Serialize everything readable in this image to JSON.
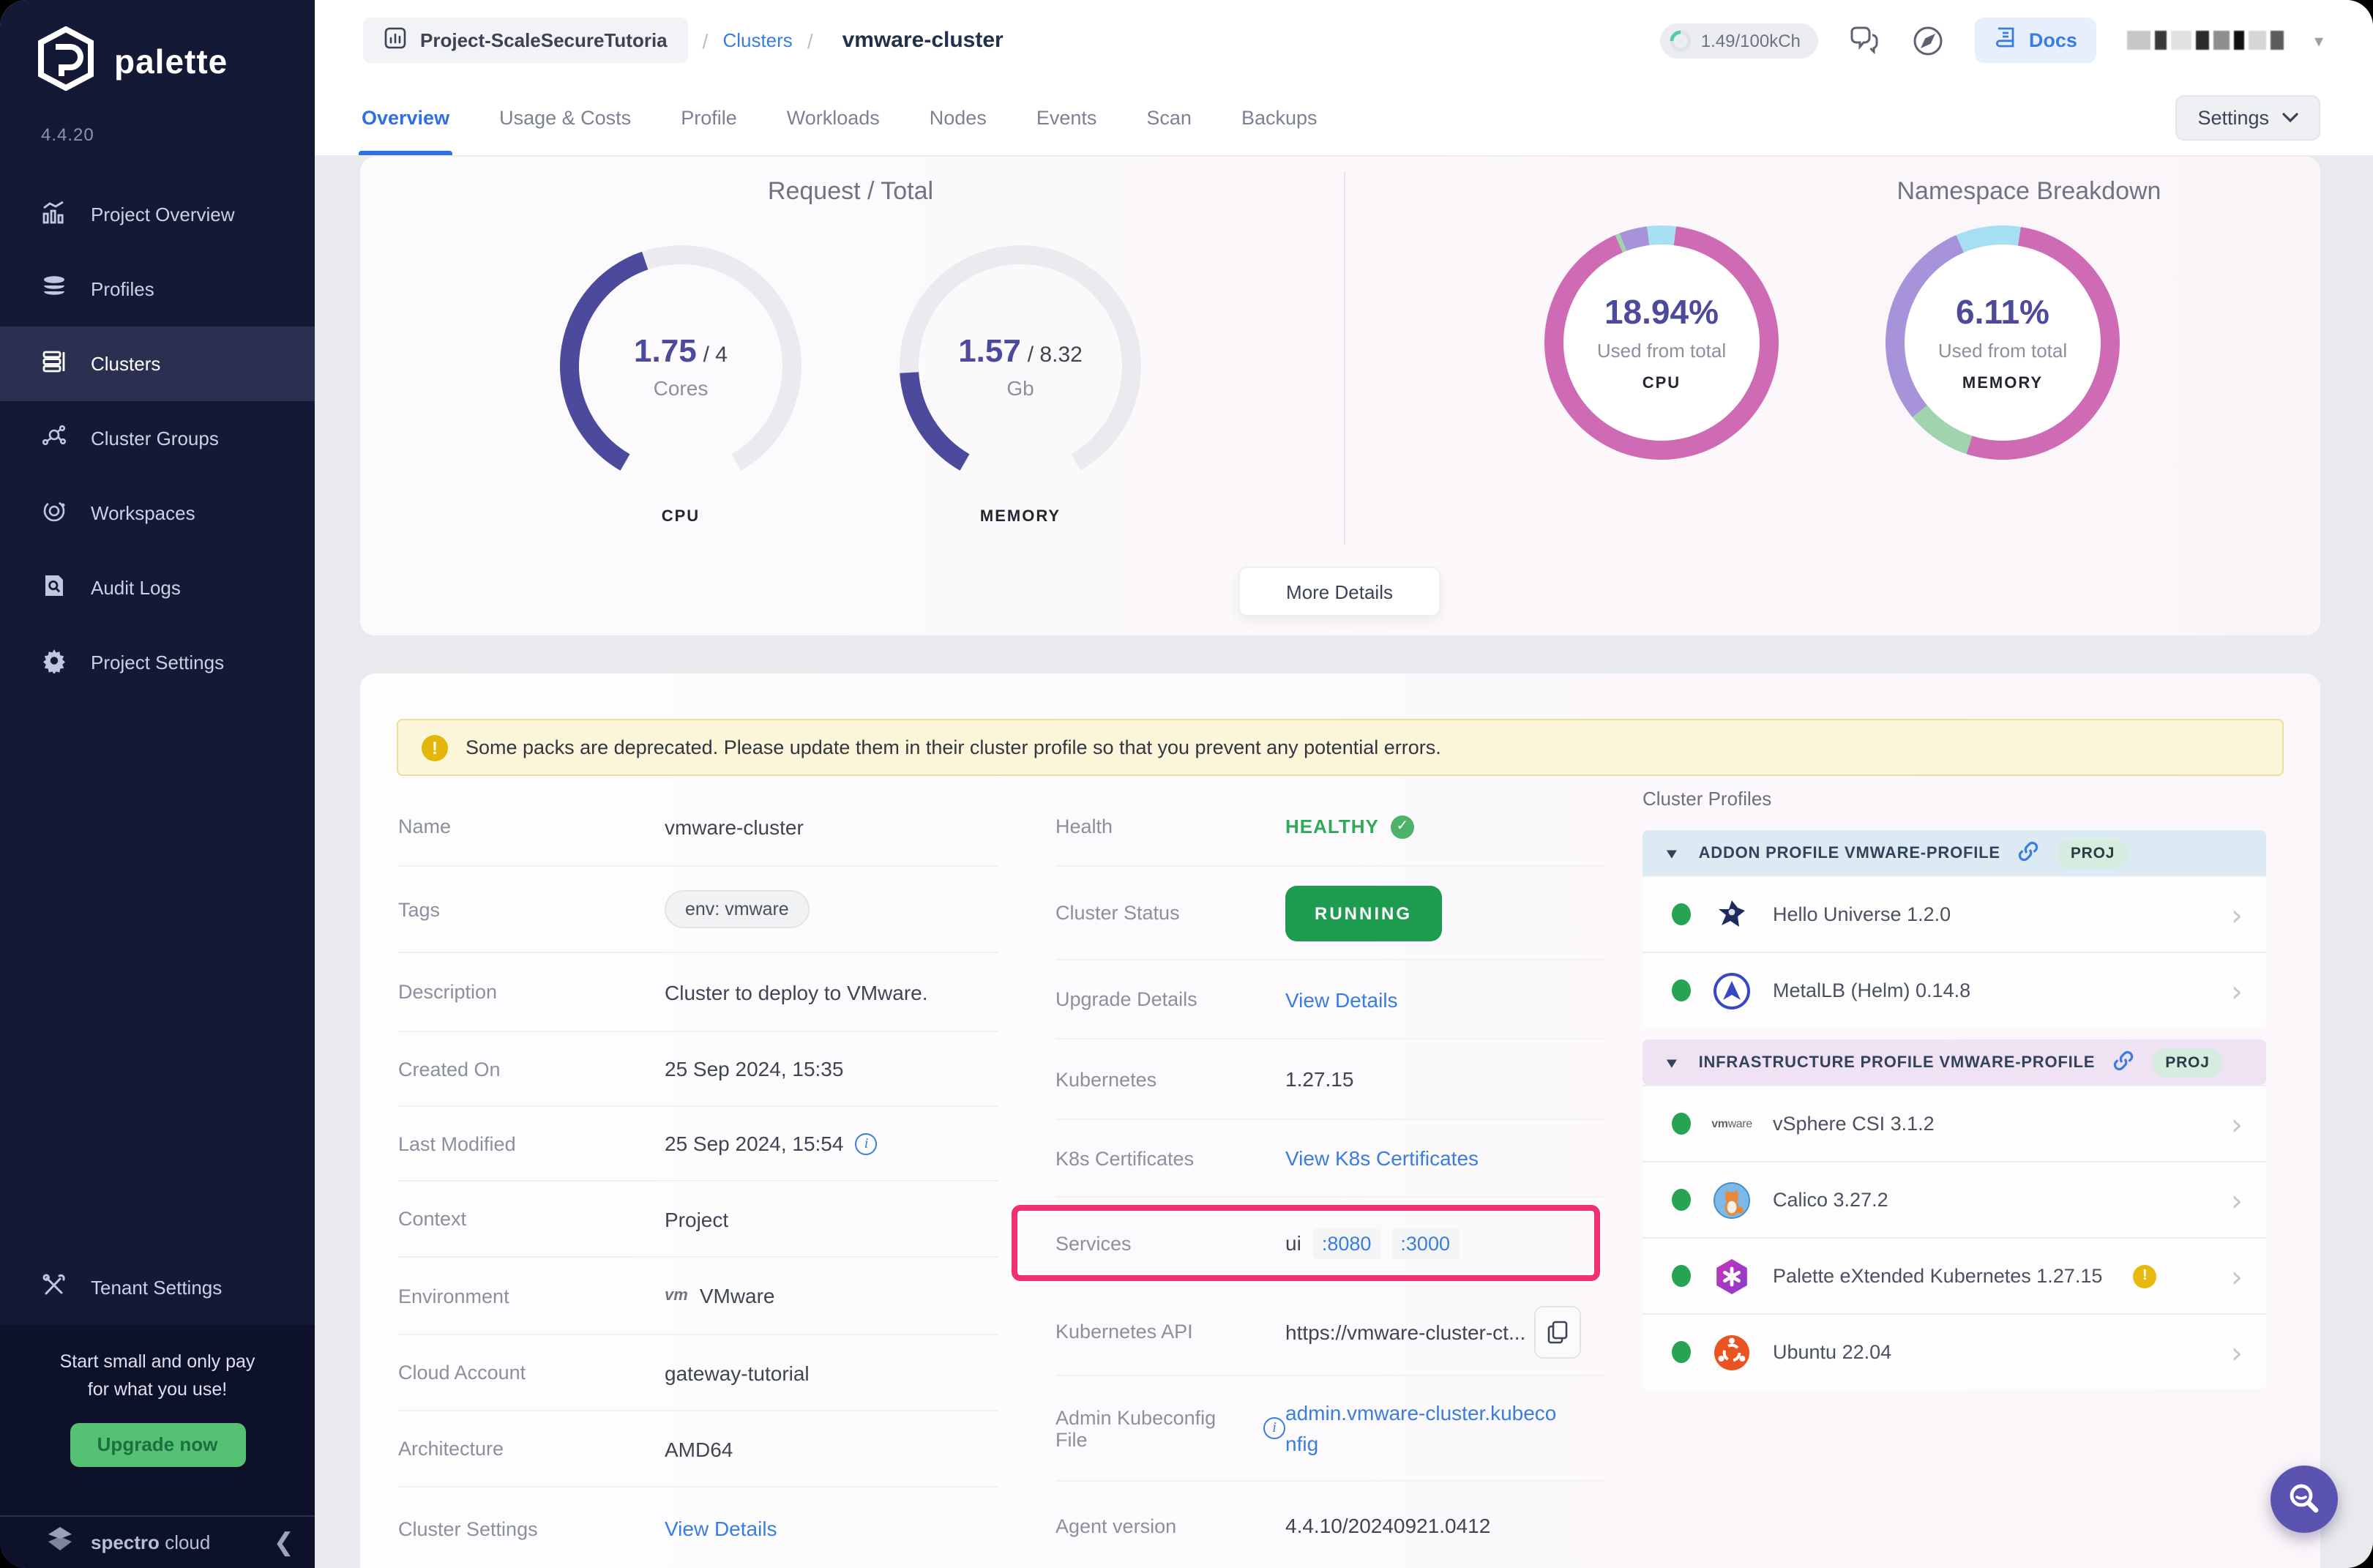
{
  "topbar": {
    "project_badge": "Project-ScaleSecureTutoria",
    "breadcrumb_section": "Clusters",
    "breadcrumb_current": "vmware-cluster",
    "credits": "1.49/100kCh",
    "docs_label": "Docs"
  },
  "sidebar": {
    "brand": "palette",
    "version": "4.4.20",
    "items": [
      {
        "label": "Project Overview"
      },
      {
        "label": "Profiles"
      },
      {
        "label": "Clusters"
      },
      {
        "label": "Cluster Groups"
      },
      {
        "label": "Workspaces"
      },
      {
        "label": "Audit Logs"
      },
      {
        "label": "Project Settings"
      }
    ],
    "tenant_settings": "Tenant Settings",
    "upsell_line1": "Start small and only pay",
    "upsell_line2": "for what you use!",
    "upgrade_label": "Upgrade now",
    "footer_brand_bold": "spectro",
    "footer_brand_light": "cloud"
  },
  "tabs": [
    {
      "label": "Overview"
    },
    {
      "label": "Usage & Costs"
    },
    {
      "label": "Profile"
    },
    {
      "label": "Workloads"
    },
    {
      "label": "Nodes"
    },
    {
      "label": "Events"
    },
    {
      "label": "Scan"
    },
    {
      "label": "Backups"
    }
  ],
  "settings_button": "Settings",
  "overview": {
    "request_total": {
      "title": "Request / Total",
      "cpu": {
        "value": "1.75",
        "total": "/ 4",
        "unit": "Cores",
        "label": "CPU",
        "fraction": 0.4375
      },
      "memory": {
        "value": "1.57",
        "total": "/ 8.32",
        "unit": "Gb",
        "label": "MEMORY",
        "fraction": 0.1887
      }
    },
    "namespace": {
      "title": "Namespace Breakdown",
      "cpu": {
        "percent": "18.94%",
        "caption": "Used from total",
        "label": "CPU",
        "segments": [
          {
            "c": "#a6dff3",
            "p": 2
          },
          {
            "c": "#cf6ab5",
            "p": 91.5
          },
          {
            "c": "#9fd4ae",
            "p": 0.7
          },
          {
            "c": "#a793da",
            "p": 3.8
          },
          {
            "c": "#a6dff3",
            "p": 2
          }
        ]
      },
      "memory": {
        "percent": "6.11%",
        "caption": "Used from total",
        "label": "MEMORY",
        "segments": [
          {
            "c": "#a6dff3",
            "p": 2.5
          },
          {
            "c": "#cf6ab5",
            "p": 52.5
          },
          {
            "c": "#9fd4ae",
            "p": 9
          },
          {
            "c": "#a793da",
            "p": 29.5
          },
          {
            "c": "#a6dff3",
            "p": 6.5
          }
        ]
      }
    },
    "more_details": "More Details"
  },
  "warning": "Some packs are deprecated. Please update them in their cluster profile so that you prevent any potential errors.",
  "details": {
    "left": {
      "name": {
        "label": "Name",
        "value": "vmware-cluster"
      },
      "tags": {
        "label": "Tags",
        "tag": "env: vmware"
      },
      "description": {
        "label": "Description",
        "value": "Cluster to deploy to VMware."
      },
      "created": {
        "label": "Created On",
        "value": "25 Sep 2024, 15:35"
      },
      "modified": {
        "label": "Last Modified",
        "value": "25 Sep 2024, 15:54"
      },
      "context": {
        "label": "Context",
        "value": "Project"
      },
      "environment": {
        "label": "Environment",
        "value": "VMware",
        "icon_text": "vm"
      },
      "cloud_account": {
        "label": "Cloud Account",
        "value": "gateway-tutorial"
      },
      "architecture": {
        "label": "Architecture",
        "value": "AMD64"
      },
      "cluster_settings": {
        "label": "Cluster Settings",
        "link": "View Details"
      }
    },
    "middle": {
      "health": {
        "label": "Health",
        "value": "HEALTHY"
      },
      "status": {
        "label": "Cluster Status",
        "value": "RUNNING"
      },
      "upgrade": {
        "label": "Upgrade Details",
        "link": "View Details"
      },
      "kubernetes": {
        "label": "Kubernetes",
        "value": "1.27.15"
      },
      "certificates": {
        "label": "K8s Certificates",
        "link": "View K8s Certificates"
      },
      "services": {
        "label": "Services",
        "name": "ui",
        "ports": [
          ":8080",
          ":3000"
        ]
      },
      "api": {
        "label": "Kubernetes API",
        "value": "https://vmware-cluster-ct..."
      },
      "kubeconfig": {
        "label": "Admin Kubeconfig File",
        "link": "admin.vmware-cluster.kubeconfig"
      },
      "agent": {
        "label": "Agent version",
        "value": "4.4.10/20240921.0412"
      }
    }
  },
  "profiles": {
    "title": "Cluster Profiles",
    "groups": [
      {
        "name": "ADDON PROFILE VMWARE-PROFILE",
        "badge": "PROJ",
        "items": [
          {
            "name": "Hello Universe 1.2.0"
          },
          {
            "name": "MetalLB (Helm) 0.14.8"
          }
        ]
      },
      {
        "name": "INFRASTRUCTURE PROFILE VMWARE-PROFILE",
        "badge": "PROJ",
        "items": [
          {
            "name": "vSphere CSI 3.1.2"
          },
          {
            "name": "Calico 3.27.2"
          },
          {
            "name": "Palette eXtended Kubernetes 1.27.15",
            "warning": "!"
          },
          {
            "name": "Ubuntu 22.04"
          }
        ]
      }
    ]
  },
  "colors": {
    "accent_blue": "#3a7de0",
    "gauge_indigo": "#4c4a9c",
    "donut_pink": "#cf6ab5",
    "status_green": "#1d9c50",
    "highlight_pink": "#f0316e",
    "warning_yellow": "#e4b609"
  }
}
